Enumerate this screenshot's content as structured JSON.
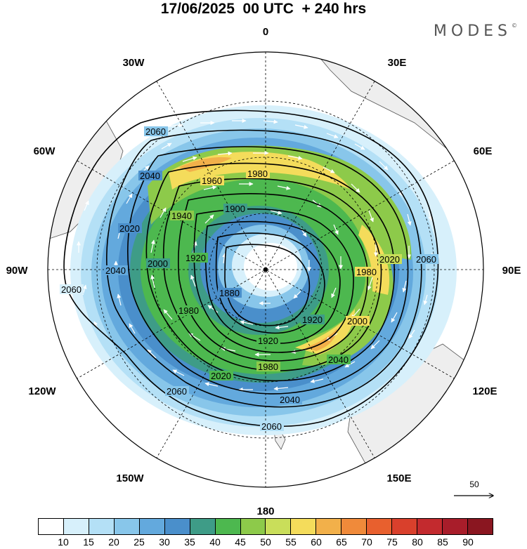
{
  "title": "17/06/2025  00 UTC  + 240 hrs",
  "brand": "MODES",
  "brand_mark": "©",
  "longitude_labels": [
    "0",
    "30E",
    "60E",
    "90E",
    "120E",
    "150E",
    "180",
    "150W",
    "120W",
    "90W",
    "60W",
    "30W"
  ],
  "contour_labels": [
    "2060",
    "2040",
    "2020",
    "2000",
    "1980",
    "1960",
    "1940",
    "1920",
    "1900",
    "1880"
  ],
  "vector_reference": "50",
  "colorbar": {
    "colors": [
      "#ffffff",
      "#d7f0fb",
      "#b4e0f6",
      "#88c6ea",
      "#63a9dd",
      "#4a8fcb",
      "#3e9c87",
      "#4db84f",
      "#8dca4a",
      "#c9de5a",
      "#f4dc5b",
      "#f2b04a",
      "#f08a3a",
      "#e8602e",
      "#d9402c",
      "#c32a2e",
      "#a81d2a",
      "#8a1620"
    ],
    "ticks": [
      "10",
      "15",
      "20",
      "25",
      "30",
      "35",
      "40",
      "45",
      "50",
      "55",
      "60",
      "65",
      "70",
      "75",
      "80",
      "85",
      "90"
    ]
  },
  "map_data": {
    "projection": "polar stereographic, south pole centered",
    "field_shaded": "wind speed",
    "field_contoured": "geopotential height",
    "contour_levels": [
      1880,
      1900,
      1920,
      1940,
      1960,
      1980,
      2000,
      2020,
      2040,
      2060
    ]
  }
}
